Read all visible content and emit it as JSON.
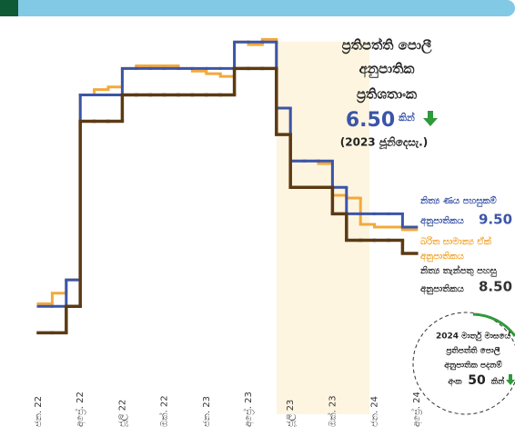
{
  "chart_data": {
    "type": "step-line",
    "categories": [
      "ජන. 22",
      null,
      null,
      "අප්‍රේ. 22",
      null,
      null,
      "ජූලි 22",
      null,
      null,
      "ඔක්. 22",
      null,
      null,
      "ජන. 23",
      null,
      null,
      "අප්‍රේ. 23",
      null,
      null,
      "ජූලි 23",
      null,
      null,
      "ඔක්. 23",
      null,
      null,
      "ජන. 24",
      null,
      null,
      "අප්‍රේ. 24"
    ],
    "series": [
      {
        "name": "නිත්‍ය ණය පහසුකම්",
        "color": "#3b55a8",
        "values": [
          6.5,
          6.5,
          7.5,
          14.5,
          14.5,
          14.5,
          15.5,
          15.5,
          15.5,
          15.5,
          15.5,
          15.5,
          15.5,
          15.5,
          16.5,
          16.5,
          16.5,
          14,
          12,
          12,
          12,
          11,
          10,
          10,
          10,
          10,
          9.5,
          null
        ]
      },
      {
        "name": "බරිත සාමාන්‍ය ඒක්",
        "color": "#f3a93c",
        "values": [
          6.6,
          7.0,
          7.5,
          14.5,
          14.7,
          14.8,
          15.5,
          15.6,
          15.6,
          15.6,
          15.5,
          15.4,
          15.3,
          15.2,
          16.5,
          16.4,
          16.6,
          14.0,
          12.0,
          12.0,
          11.9,
          10.7,
          10.6,
          9.6,
          9.5,
          9.5,
          9.4,
          null
        ]
      },
      {
        "name": "නිත්‍ය තැන්පතු පහසු",
        "color": "#5b3a14",
        "values": [
          5.5,
          5.5,
          6.5,
          13.5,
          13.5,
          13.5,
          14.5,
          14.5,
          14.5,
          14.5,
          14.5,
          14.5,
          14.5,
          14.5,
          15.5,
          15.5,
          15.5,
          13,
          11,
          11,
          11,
          10,
          9,
          9,
          9,
          9,
          8.5,
          null
        ]
      }
    ],
    "ylim": [
      4,
      18
    ],
    "title_lines": [
      "ප්‍රතිපත්ති පොලී",
      "අනුපාතික",
      "ප්‍රතිශතාංක"
    ],
    "change": "6.50",
    "change_unit": "කින්",
    "period": "(2023 ජූනිදෙසැ.)",
    "series_labels": [
      {
        "lines": [
          "නිත්‍ය ණය පහසුකම්",
          "අනුපාතිකය"
        ],
        "value": "9.50"
      },
      {
        "lines": [
          "බරිත සාමාන්‍ය ඒක්",
          "අනුපාතිකය"
        ]
      },
      {
        "lines": [
          "නිත්‍ය තැන්පතු පහසු",
          "අනුපාතිකය"
        ],
        "value": "8.50"
      }
    ],
    "note": [
      "2024 මාර්තු මාසයේ",
      "ප්‍රතිපත්ති පොලී",
      "අනුපාතික පදනම්",
      "අංක",
      "50",
      "කින්"
    ]
  }
}
